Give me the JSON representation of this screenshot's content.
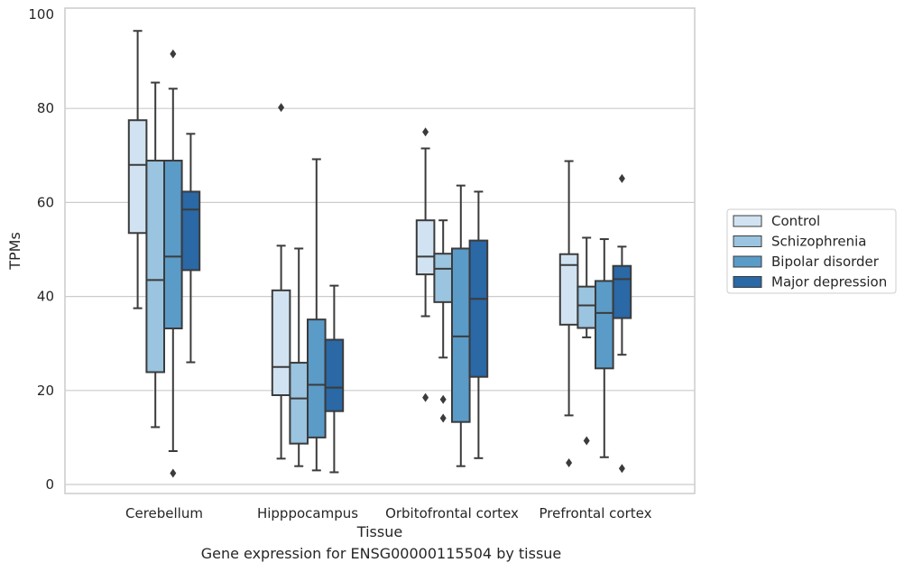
{
  "caption": "Gene expression for ENSG00000115504 by tissue",
  "chart_data": {
    "type": "box",
    "xlabel": "Tissue",
    "ylabel": "TPMs",
    "ylim": [
      -2,
      101
    ],
    "yticks": [
      0,
      20,
      40,
      60,
      80,
      100
    ],
    "grid": "horizontal",
    "legend_position": "right",
    "categories": [
      "Cerebellum",
      "Hipppocampus",
      "Orbitofrontal cortex",
      "Prefrontal cortex"
    ],
    "series": [
      {
        "name": "Control",
        "color": "#d1e3f2",
        "boxes": [
          {
            "whisker_low": 37.5,
            "q1": 53.5,
            "median": 68.0,
            "q3": 77.5,
            "whisker_high": 96.5,
            "outliers": []
          },
          {
            "whisker_low": 5.5,
            "q1": 19.0,
            "median": 25.0,
            "q3": 41.3,
            "whisker_high": 50.8,
            "outliers": [
              80.2
            ]
          },
          {
            "whisker_low": 35.8,
            "q1": 44.7,
            "median": 48.5,
            "q3": 56.2,
            "whisker_high": 71.5,
            "outliers": [
              75.0,
              18.5
            ]
          },
          {
            "whisker_low": 14.7,
            "q1": 34.0,
            "median": 46.7,
            "q3": 49.0,
            "whisker_high": 68.8,
            "outliers": [
              4.6
            ]
          }
        ]
      },
      {
        "name": "Schizophrenia",
        "color": "#9ac4df",
        "boxes": [
          {
            "whisker_low": 12.2,
            "q1": 23.9,
            "median": 43.5,
            "q3": 68.9,
            "whisker_high": 85.5,
            "outliers": []
          },
          {
            "whisker_low": 3.9,
            "q1": 8.7,
            "median": 18.3,
            "q3": 25.9,
            "whisker_high": 50.2,
            "outliers": []
          },
          {
            "whisker_low": 27.0,
            "q1": 38.8,
            "median": 45.9,
            "q3": 49.1,
            "whisker_high": 56.2,
            "outliers": [
              18.1,
              14.1
            ]
          },
          {
            "whisker_low": 31.3,
            "q1": 33.3,
            "median": 38.1,
            "q3": 42.1,
            "whisker_high": 52.5,
            "outliers": [
              9.3
            ]
          }
        ]
      },
      {
        "name": "Bipolar disorder",
        "color": "#5a9bc8",
        "boxes": [
          {
            "whisker_low": 7.1,
            "q1": 33.2,
            "median": 48.5,
            "q3": 68.9,
            "whisker_high": 84.2,
            "outliers": [
              91.6,
              2.4
            ]
          },
          {
            "whisker_low": 3.0,
            "q1": 10.0,
            "median": 21.2,
            "q3": 35.1,
            "whisker_high": 69.2,
            "outliers": []
          },
          {
            "whisker_low": 3.9,
            "q1": 13.3,
            "median": 31.5,
            "q3": 50.2,
            "whisker_high": 63.6,
            "outliers": []
          },
          {
            "whisker_low": 5.8,
            "q1": 24.7,
            "median": 36.5,
            "q3": 43.3,
            "whisker_high": 52.2,
            "outliers": []
          }
        ]
      },
      {
        "name": "Major depression",
        "color": "#2a68a6",
        "boxes": [
          {
            "whisker_low": 26.0,
            "q1": 45.6,
            "median": 58.5,
            "q3": 62.3,
            "whisker_high": 74.6,
            "outliers": []
          },
          {
            "whisker_low": 2.6,
            "q1": 15.6,
            "median": 20.6,
            "q3": 30.8,
            "whisker_high": 42.3,
            "outliers": []
          },
          {
            "whisker_low": 5.6,
            "q1": 22.9,
            "median": 39.5,
            "q3": 51.9,
            "whisker_high": 62.3,
            "outliers": []
          },
          {
            "whisker_low": 27.6,
            "q1": 35.4,
            "median": 43.7,
            "q3": 46.5,
            "whisker_high": 50.6,
            "outliers": [
              65.1,
              3.4
            ]
          }
        ]
      }
    ]
  }
}
